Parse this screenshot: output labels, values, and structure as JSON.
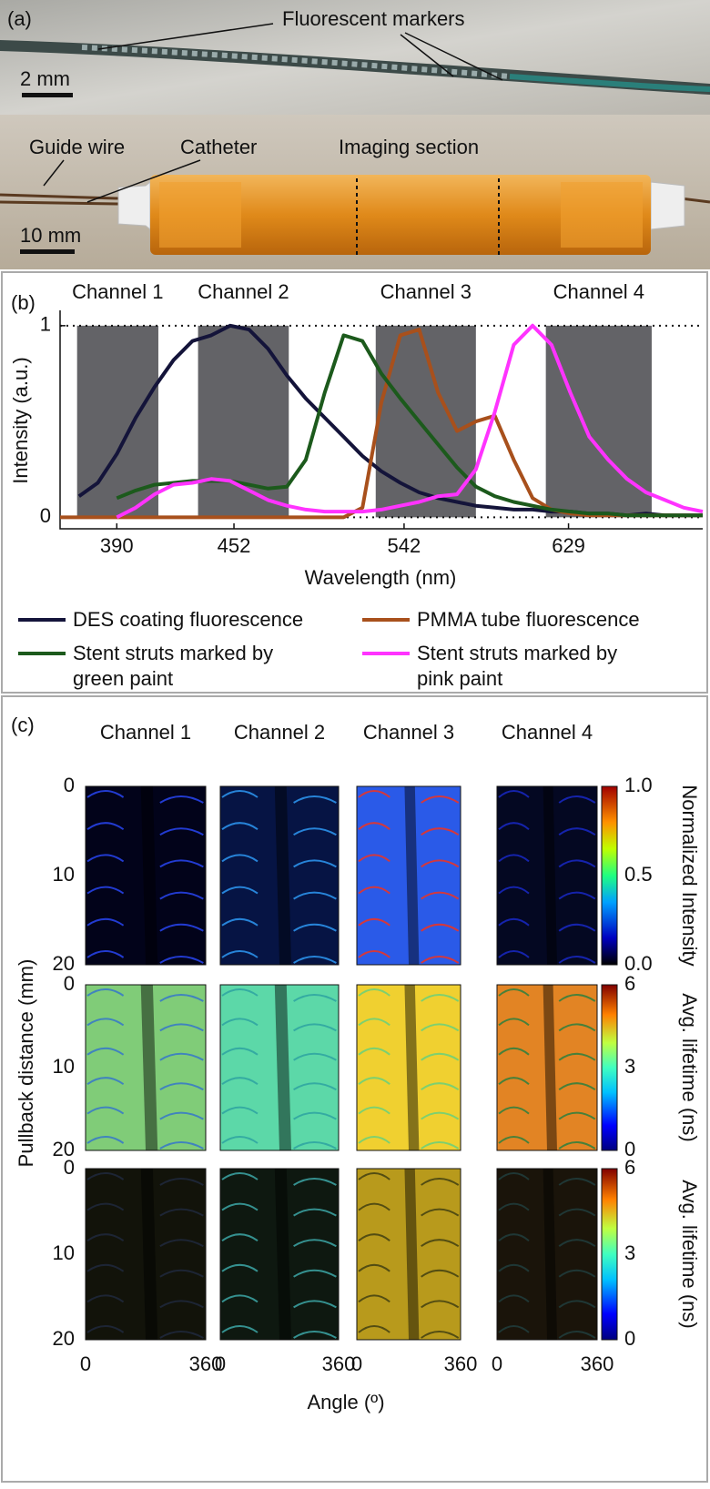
{
  "panel_a": {
    "label": "(a)",
    "labels": [
      "Fluorescent markers",
      "2 mm",
      "Guide wire",
      "Catheter",
      "Imaging section",
      "10 mm"
    ]
  },
  "chart_data": {
    "type": "line",
    "panel_label": "(b)",
    "xlabel": "Wavelength (nm)",
    "ylabel": "Intensity (a.u.)",
    "xlim": [
      360,
      700
    ],
    "ylim": [
      -0.06,
      1.08
    ],
    "xticks": [
      390,
      452,
      542,
      629
    ],
    "yticks": [
      0,
      1
    ],
    "grid": true,
    "grid_style": "dotted",
    "legend": "bottom",
    "channels": [
      {
        "name": "Channel 1",
        "range": [
          369,
          412
        ],
        "color": "#636367"
      },
      {
        "name": "Channel 2",
        "range": [
          433,
          481
        ],
        "color": "#636367"
      },
      {
        "name": "Channel 3",
        "range": [
          527,
          580
        ],
        "color": "#636367"
      },
      {
        "name": "Channel 4",
        "range": [
          617,
          673
        ],
        "color": "#636367"
      }
    ],
    "x": [
      360,
      370,
      380,
      390,
      400,
      410,
      420,
      430,
      440,
      450,
      460,
      470,
      480,
      490,
      500,
      510,
      520,
      530,
      540,
      550,
      560,
      570,
      580,
      590,
      600,
      610,
      620,
      630,
      640,
      650,
      660,
      670,
      680,
      690,
      700
    ],
    "series": [
      {
        "name": "DES coating fluorescence",
        "color": "#14143a",
        "values": [
          null,
          0.11,
          0.18,
          0.33,
          0.52,
          0.68,
          0.82,
          0.92,
          0.95,
          1.0,
          0.98,
          0.88,
          0.74,
          0.62,
          0.52,
          0.42,
          0.32,
          0.24,
          0.18,
          0.13,
          0.1,
          0.08,
          0.06,
          0.05,
          0.04,
          0.04,
          0.03,
          0.03,
          0.02,
          0.02,
          0.01,
          0.02,
          0.01,
          0.01,
          0.01
        ]
      },
      {
        "name": "PMMA tube fluorescence",
        "color": "#a8501c",
        "values": [
          0.0,
          0.0,
          0.0,
          0.0,
          0.0,
          0.0,
          0.0,
          0.0,
          0.0,
          0.0,
          0.0,
          0.0,
          0.0,
          0.0,
          0.0,
          0.0,
          0.05,
          0.6,
          0.95,
          0.98,
          0.65,
          0.45,
          0.5,
          0.53,
          0.3,
          0.1,
          0.04,
          0.02,
          0.01,
          0.01,
          0.01,
          0.01,
          0.01,
          0.01,
          0.01
        ]
      },
      {
        "name": "Stent struts marked by green paint",
        "color": "#1c5a1c",
        "values": [
          null,
          null,
          null,
          0.1,
          0.14,
          0.17,
          0.18,
          0.19,
          0.19,
          0.19,
          0.17,
          0.15,
          0.16,
          0.3,
          0.65,
          0.95,
          0.92,
          0.75,
          0.62,
          0.5,
          0.38,
          0.26,
          0.16,
          0.11,
          0.08,
          0.06,
          0.04,
          0.03,
          0.02,
          0.02,
          0.01,
          0.01,
          0.01,
          0.01,
          0.01
        ]
      },
      {
        "name": "Stent struts marked by pink paint",
        "color": "#ff33ff",
        "values": [
          null,
          null,
          null,
          0.0,
          0.05,
          0.12,
          0.17,
          0.18,
          0.2,
          0.19,
          0.14,
          0.09,
          0.06,
          0.04,
          0.03,
          0.03,
          0.03,
          0.04,
          0.06,
          0.08,
          0.11,
          0.12,
          0.25,
          0.55,
          0.9,
          1.0,
          0.9,
          0.65,
          0.42,
          0.3,
          0.2,
          0.13,
          0.09,
          0.05,
          0.03
        ]
      }
    ]
  },
  "panel_c": {
    "label": "(c)",
    "columns": [
      "Channel 1",
      "Channel 2",
      "Channel 3",
      "Channel 4"
    ],
    "ylabel": "Pullback distance (mm)",
    "xlabel": "Angle (º)",
    "ylim": [
      0,
      20
    ],
    "yticks": [
      0,
      10,
      20
    ],
    "xlim": [
      0,
      360
    ],
    "xticks": [
      0,
      360
    ],
    "rows": [
      {
        "colorbar_label": "Normalized Intensity",
        "clim": [
          0,
          1
        ],
        "colorbar_ticks": [
          {
            "value": 0,
            "label": "0.0"
          },
          {
            "value": 0.5,
            "label": "0.5"
          },
          {
            "value": 1,
            "label": "1.0"
          }
        ]
      },
      {
        "colorbar_label": "Avg. lifetime (ns)",
        "clim": [
          0,
          6
        ],
        "colorbar_ticks": [
          0,
          3,
          6
        ]
      },
      {
        "colorbar_label": "Avg. lifetime (ns)",
        "clim": [
          0,
          6
        ],
        "colorbar_ticks": [
          0,
          3,
          6
        ]
      }
    ]
  }
}
